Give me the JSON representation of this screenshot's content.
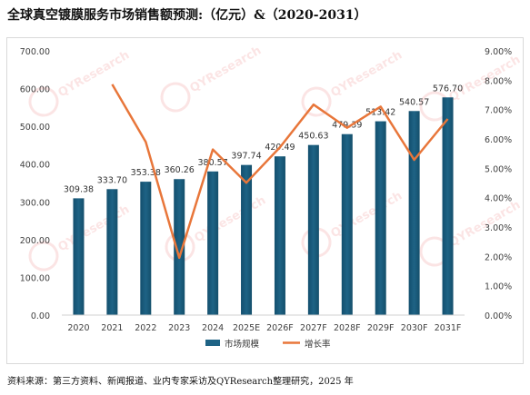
{
  "title": "全球真空镀膜服务市场销售额预测:（亿元）&（2020-2031）",
  "source": "资料来源：第三方资料、新闻报道、业内专家采访及QYResearch整理研究，2025 年",
  "watermark": "QYResearch",
  "chart_data": {
    "type": "bar",
    "categories": [
      "2020",
      "2021",
      "2022",
      "2023",
      "2024",
      "2025E",
      "2026F",
      "2027F",
      "2028F",
      "2029F",
      "2030F",
      "2031F"
    ],
    "series": [
      {
        "name": "市场规模",
        "type": "bar",
        "axis": "left",
        "color": "#1e6385",
        "values": [
          309.38,
          333.7,
          353.38,
          360.26,
          380.57,
          397.74,
          420.49,
          450.63,
          479.39,
          513.42,
          540.57,
          576.7
        ],
        "labels": [
          "309.38",
          "333.70",
          "353.38",
          "360.26",
          "380.57",
          "397.74",
          "420.49",
          "450.63",
          "479.39",
          "513.42",
          "540.57",
          "576.70"
        ]
      },
      {
        "name": "增长率",
        "type": "line",
        "axis": "right",
        "color": "#e8763a",
        "values": [
          null,
          7.86,
          5.9,
          1.95,
          5.64,
          4.51,
          5.72,
          7.17,
          6.38,
          7.1,
          5.29,
          6.68
        ]
      }
    ],
    "y_left": {
      "min": 0,
      "max": 700,
      "step": 100,
      "ticks": [
        "0.00",
        "100.00",
        "200.00",
        "300.00",
        "400.00",
        "500.00",
        "600.00",
        "700.00"
      ]
    },
    "y_right": {
      "min": 0,
      "max": 9,
      "step": 1,
      "ticks": [
        "0.00%",
        "1.00%",
        "2.00%",
        "3.00%",
        "4.00%",
        "5.00%",
        "6.00%",
        "7.00%",
        "8.00%",
        "9.00%"
      ]
    },
    "legend": {
      "position": "bottom",
      "items": [
        "市场规模",
        "增长率"
      ]
    },
    "grid": false
  }
}
